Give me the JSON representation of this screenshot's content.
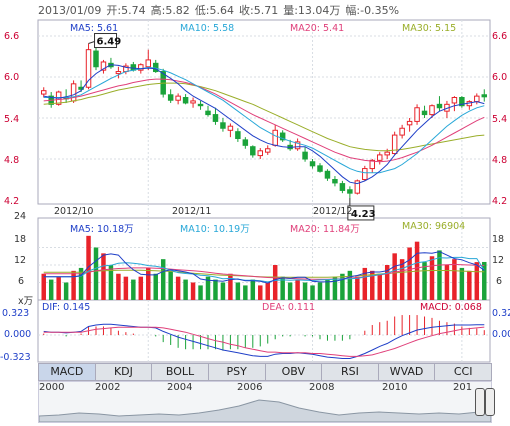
{
  "header": {
    "date": "2013/01/09",
    "open": "开:5.74",
    "high": "高:5.82",
    "low": "低:5.64",
    "close": "收:5.71",
    "volume": "量:13.04万",
    "change": "幅:-0.35%"
  },
  "price_panel": {
    "ma5": "MA5: 5.61",
    "ma10": "MA10: 5.58",
    "ma20": "MA20: 5.41",
    "ma30": "MA30: 5.15",
    "y_ticks": [
      "6.6",
      "6.0",
      "5.4",
      "4.8",
      "4.2"
    ],
    "x_ticks": [
      "2012/10",
      "2012/11",
      "2012/12"
    ],
    "max_label": "6.49",
    "min_label": "4.23"
  },
  "volume_panel": {
    "ma5": "MA5: 10.18万",
    "ma10": "MA10: 10.19万",
    "ma20": "MA20: 11.84万",
    "ma30": "MA30: 96904",
    "y_ticks": [
      "24",
      "18",
      "12",
      "6"
    ],
    "unit": "x万"
  },
  "macd_panel": {
    "dif": "DIF: 0.145",
    "dea": "DEA: 0.111",
    "macd": "MACD: 0.068",
    "y_ticks": [
      "0.323",
      "0.000",
      "-0.323"
    ]
  },
  "tabs": [
    "MACD",
    "KDJ",
    "BOLL",
    "PSY",
    "OBV",
    "RSI",
    "WVAD",
    "CCI"
  ],
  "active_tab": "MACD",
  "timeline_years": [
    "2000",
    "2002",
    "2004",
    "2006",
    "2008",
    "2010",
    "201"
  ],
  "colors": {
    "up": "#e8232a",
    "down": "#1aa33a",
    "ma5": "#1f3fc8",
    "ma10": "#29a8d8",
    "ma20": "#e0407a",
    "ma30": "#9aae2a",
    "grid": "#d8dde3"
  },
  "chart_data": {
    "type": "candlestick",
    "price": {
      "ylim": [
        4.2,
        6.6
      ],
      "ohlc": [
        [
          5.75,
          5.85,
          5.7,
          5.8
        ],
        [
          5.72,
          5.78,
          5.55,
          5.6
        ],
        [
          5.6,
          5.8,
          5.58,
          5.78
        ],
        [
          5.7,
          5.82,
          5.62,
          5.68
        ],
        [
          5.65,
          5.95,
          5.62,
          5.9
        ],
        [
          5.85,
          5.95,
          5.78,
          5.82
        ],
        [
          5.85,
          6.49,
          5.82,
          6.4
        ],
        [
          6.38,
          6.45,
          6.1,
          6.15
        ],
        [
          6.1,
          6.25,
          6.05,
          6.22
        ],
        [
          6.2,
          6.28,
          6.12,
          6.15
        ],
        [
          6.05,
          6.15,
          5.98,
          6.08
        ],
        [
          6.08,
          6.2,
          6.04,
          6.16
        ],
        [
          6.18,
          6.22,
          6.08,
          6.1
        ],
        [
          6.1,
          6.2,
          6.05,
          6.18
        ],
        [
          6.15,
          6.4,
          6.1,
          6.25
        ],
        [
          6.2,
          6.25,
          6.06,
          6.08
        ],
        [
          6.08,
          6.12,
          5.7,
          5.75
        ],
        [
          5.74,
          5.82,
          5.62,
          5.66
        ],
        [
          5.66,
          5.76,
          5.6,
          5.72
        ],
        [
          5.7,
          5.75,
          5.6,
          5.62
        ],
        [
          5.62,
          5.7,
          5.55,
          5.65
        ],
        [
          5.6,
          5.65,
          5.52,
          5.58
        ],
        [
          5.5,
          5.58,
          5.42,
          5.45
        ],
        [
          5.45,
          5.55,
          5.3,
          5.35
        ],
        [
          5.33,
          5.4,
          5.2,
          5.25
        ],
        [
          5.22,
          5.32,
          5.12,
          5.28
        ],
        [
          5.2,
          5.25,
          5.05,
          5.1
        ],
        [
          5.08,
          5.12,
          4.95,
          5.0
        ],
        [
          4.98,
          5.0,
          4.82,
          4.86
        ],
        [
          4.85,
          4.96,
          4.8,
          4.92
        ],
        [
          4.9,
          5.0,
          4.86,
          4.95
        ],
        [
          5.0,
          5.3,
          4.98,
          5.22
        ],
        [
          5.18,
          5.22,
          5.05,
          5.08
        ],
        [
          5.0,
          5.08,
          4.92,
          4.95
        ],
        [
          4.95,
          5.1,
          4.92,
          5.05
        ],
        [
          4.9,
          4.98,
          4.76,
          4.8
        ],
        [
          4.76,
          4.8,
          4.66,
          4.7
        ],
        [
          4.7,
          4.74,
          4.6,
          4.62
        ],
        [
          4.62,
          4.65,
          4.48,
          4.52
        ],
        [
          4.5,
          4.55,
          4.4,
          4.45
        ],
        [
          4.44,
          4.48,
          4.3,
          4.34
        ],
        [
          4.35,
          4.4,
          4.23,
          4.3
        ],
        [
          4.3,
          4.5,
          4.28,
          4.48
        ],
        [
          4.5,
          4.7,
          4.48,
          4.66
        ],
        [
          4.66,
          4.8,
          4.6,
          4.78
        ],
        [
          4.78,
          4.9,
          4.72,
          4.86
        ],
        [
          4.86,
          4.95,
          4.8,
          4.9
        ],
        [
          4.88,
          5.2,
          4.86,
          5.15
        ],
        [
          5.15,
          5.3,
          5.1,
          5.25
        ],
        [
          5.3,
          5.4,
          5.2,
          5.35
        ],
        [
          5.35,
          5.6,
          5.3,
          5.55
        ],
        [
          5.5,
          5.58,
          5.4,
          5.45
        ],
        [
          5.45,
          5.6,
          5.4,
          5.58
        ],
        [
          5.6,
          5.72,
          5.5,
          5.55
        ],
        [
          5.5,
          5.65,
          5.4,
          5.6
        ],
        [
          5.62,
          5.72,
          5.5,
          5.7
        ],
        [
          5.7,
          5.72,
          5.55,
          5.58
        ],
        [
          5.58,
          5.66,
          5.52,
          5.64
        ],
        [
          5.64,
          5.76,
          5.6,
          5.72
        ],
        [
          5.74,
          5.82,
          5.64,
          5.71
        ]
      ],
      "ma5": [
        5.72,
        5.7,
        5.69,
        5.71,
        5.74,
        5.8,
        5.95,
        6.05,
        6.12,
        6.18,
        6.17,
        6.14,
        6.13,
        6.12,
        6.13,
        6.12,
        6.05,
        5.98,
        5.9,
        5.8,
        5.72,
        5.66,
        5.6,
        5.54,
        5.46,
        5.38,
        5.3,
        5.22,
        5.14,
        5.08,
        5.03,
        5.0,
        4.98,
        4.97,
        4.98,
        4.98,
        4.92,
        4.84,
        4.74,
        4.64,
        4.54,
        4.46,
        4.44,
        4.48,
        4.54,
        4.62,
        4.72,
        4.86,
        4.98,
        5.1,
        5.22,
        5.32,
        5.42,
        5.5,
        5.54,
        5.58,
        5.6,
        5.62,
        5.64,
        5.61
      ],
      "ma10": [
        5.7,
        5.7,
        5.7,
        5.7,
        5.71,
        5.74,
        5.8,
        5.86,
        5.92,
        5.98,
        6.03,
        6.08,
        6.1,
        6.12,
        6.14,
        6.13,
        6.1,
        6.06,
        6.01,
        5.96,
        5.9,
        5.84,
        5.78,
        5.72,
        5.66,
        5.58,
        5.5,
        5.42,
        5.34,
        5.26,
        5.2,
        5.14,
        5.1,
        5.06,
        5.03,
        5.0,
        4.96,
        4.9,
        4.84,
        4.78,
        4.72,
        4.66,
        4.62,
        4.6,
        4.6,
        4.6,
        4.63,
        4.66,
        4.72,
        4.8,
        4.88,
        4.98,
        5.08,
        5.18,
        5.28,
        5.36,
        5.44,
        5.5,
        5.55,
        5.58
      ],
      "ma20": [
        5.65,
        5.66,
        5.67,
        5.68,
        5.7,
        5.72,
        5.75,
        5.78,
        5.81,
        5.84,
        5.87,
        5.89,
        5.92,
        5.94,
        5.96,
        5.97,
        5.97,
        5.96,
        5.94,
        5.92,
        5.89,
        5.85,
        5.8,
        5.75,
        5.69,
        5.63,
        5.57,
        5.51,
        5.45,
        5.4,
        5.35,
        5.3,
        5.25,
        5.2,
        5.15,
        5.1,
        5.05,
        5.0,
        4.95,
        4.9,
        4.86,
        4.82,
        4.8,
        4.78,
        4.77,
        4.76,
        4.77,
        4.79,
        4.82,
        4.86,
        4.9,
        4.95,
        5.0,
        5.06,
        5.12,
        5.18,
        5.24,
        5.3,
        5.36,
        5.41
      ],
      "ma30": [
        5.6,
        5.61,
        5.62,
        5.63,
        5.65,
        5.67,
        5.7,
        5.72,
        5.75,
        5.78,
        5.81,
        5.83,
        5.85,
        5.87,
        5.89,
        5.9,
        5.91,
        5.91,
        5.91,
        5.9,
        5.88,
        5.86,
        5.83,
        5.8,
        5.76,
        5.72,
        5.68,
        5.64,
        5.6,
        5.55,
        5.5,
        5.45,
        5.4,
        5.35,
        5.3,
        5.25,
        5.2,
        5.15,
        5.1,
        5.06,
        5.02,
        4.98,
        4.96,
        4.94,
        4.93,
        4.92,
        4.92,
        4.93,
        4.94,
        4.96,
        4.98,
        5.0,
        5.02,
        5.04,
        5.06,
        5.08,
        5.1,
        5.12,
        5.14,
        5.15
      ]
    },
    "volume": {
      "ylim": [
        0,
        24
      ],
      "values": [
        9,
        7,
        8,
        6,
        10,
        11,
        22,
        18,
        16,
        12,
        9,
        8,
        7,
        8,
        11,
        9,
        14,
        10,
        8,
        7,
        6,
        5,
        8,
        7,
        6,
        9,
        6,
        5,
        7,
        5,
        6,
        12,
        8,
        6,
        7,
        6,
        5,
        6,
        7,
        8,
        9,
        10,
        8,
        11,
        10,
        9,
        12,
        16,
        14,
        18,
        20,
        13,
        15,
        17,
        12,
        14,
        11,
        10,
        13,
        13.04
      ],
      "ma5": [
        8,
        8,
        8,
        8,
        8,
        8.4,
        11.4,
        13.4,
        15.4,
        15.8,
        15.4,
        12.6,
        10.4,
        8.8,
        8.6,
        8.6,
        9.8,
        10.4,
        10,
        9.6,
        9,
        7.2,
        6.8,
        6.6,
        6.4,
        7,
        7.2,
        6.6,
        6.6,
        6.4,
        5.8,
        7,
        7.6,
        7.4,
        7.8,
        7.8,
        6.4,
        6.2,
        6.2,
        6.4,
        7,
        8,
        8.4,
        9.2,
        9.6,
        9.6,
        10,
        11.6,
        12.2,
        13.8,
        16,
        16.2,
        16,
        16.6,
        15.4,
        14.2,
        13.8,
        12.8,
        12,
        10.18
      ],
      "ma10": [
        8,
        8,
        8,
        8,
        8,
        8.2,
        9.9,
        10.9,
        11.7,
        11.9,
        12.6,
        12.8,
        12.6,
        12.3,
        11.8,
        11.6,
        11.1,
        10.2,
        9.4,
        9.1,
        8.9,
        8.5,
        8.3,
        7.9,
        7.3,
        7.4,
        7.1,
        6.8,
        6.8,
        6.6,
        6.2,
        6.7,
        6.9,
        6.8,
        6.9,
        6.8,
        6.7,
        6.9,
        7,
        7.1,
        7.2,
        7.3,
        7.4,
        7.9,
        8.3,
        8.7,
        9.2,
        10.2,
        10.8,
        11.8,
        12.8,
        13.1,
        13.8,
        14.5,
        14.4,
        14.6,
        14.6,
        14.2,
        14.2,
        10.19
      ],
      "ma20": [
        9,
        9,
        9,
        9,
        9,
        9,
        9.5,
        10,
        10.4,
        10.6,
        10.8,
        10.9,
        11,
        11,
        11,
        10.9,
        10.8,
        10.6,
        10.4,
        10.2,
        10,
        9.8,
        9.5,
        9.2,
        8.9,
        8.7,
        8.5,
        8.3,
        8.1,
        7.9,
        7.7,
        7.6,
        7.5,
        7.4,
        7.3,
        7.2,
        7.1,
        7.1,
        7.1,
        7.2,
        7.3,
        7.5,
        7.7,
        8,
        8.3,
        8.6,
        9,
        9.5,
        10,
        10.5,
        11,
        11.4,
        11.7,
        12,
        12.1,
        12.2,
        12.1,
        12,
        11.9,
        11.84
      ],
      "ma30": [
        9.5,
        9.5,
        9.5,
        9.5,
        9.5,
        9.5,
        9.7,
        9.9,
        10,
        10.1,
        10.2,
        10.2,
        10.2,
        10.2,
        10.1,
        10,
        9.9,
        9.8,
        9.6,
        9.4,
        9.2,
        9,
        8.8,
        8.6,
        8.5,
        8.4,
        8.3,
        8.2,
        8.1,
        8,
        7.9,
        7.9,
        7.8,
        7.8,
        7.8,
        7.8,
        7.8,
        7.8,
        7.8,
        7.9,
        8,
        8.1,
        8.3,
        8.5,
        8.7,
        8.9,
        9.1,
        9.3,
        9.5,
        9.7,
        9.9,
        10,
        10.1,
        10.1,
        10.1,
        10,
        9.9,
        9.8,
        9.7,
        9.69
      ]
    },
    "macd": {
      "ylim": [
        -0.323,
        0.323
      ],
      "dif": [
        0.05,
        0.04,
        0.04,
        0.03,
        0.04,
        0.05,
        0.12,
        0.14,
        0.15,
        0.15,
        0.14,
        0.13,
        0.12,
        0.11,
        0.11,
        0.1,
        0.05,
        0.01,
        -0.03,
        -0.06,
        -0.09,
        -0.12,
        -0.15,
        -0.18,
        -0.21,
        -0.23,
        -0.25,
        -0.27,
        -0.29,
        -0.3,
        -0.3,
        -0.27,
        -0.26,
        -0.26,
        -0.25,
        -0.26,
        -0.27,
        -0.29,
        -0.31,
        -0.32,
        -0.33,
        -0.33,
        -0.3,
        -0.26,
        -0.21,
        -0.16,
        -0.12,
        -0.06,
        -0.01,
        0.03,
        0.07,
        0.09,
        0.11,
        0.12,
        0.13,
        0.14,
        0.14,
        0.14,
        0.145,
        0.145
      ],
      "dea": [
        0.04,
        0.04,
        0.04,
        0.04,
        0.04,
        0.04,
        0.06,
        0.08,
        0.09,
        0.1,
        0.11,
        0.11,
        0.11,
        0.11,
        0.11,
        0.11,
        0.1,
        0.08,
        0.06,
        0.04,
        0.01,
        -0.02,
        -0.05,
        -0.08,
        -0.1,
        -0.13,
        -0.15,
        -0.18,
        -0.2,
        -0.22,
        -0.24,
        -0.24,
        -0.25,
        -0.25,
        -0.25,
        -0.25,
        -0.26,
        -0.26,
        -0.27,
        -0.28,
        -0.29,
        -0.3,
        -0.3,
        -0.29,
        -0.28,
        -0.25,
        -0.22,
        -0.19,
        -0.15,
        -0.11,
        -0.07,
        -0.04,
        -0.01,
        0.02,
        0.04,
        0.06,
        0.08,
        0.09,
        0.1,
        0.111
      ]
    }
  }
}
